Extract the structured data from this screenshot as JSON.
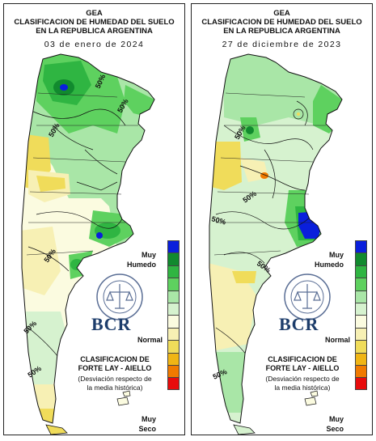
{
  "colors": {
    "scale": [
      "#0a1fdc",
      "#118a2e",
      "#2fb542",
      "#5ed15f",
      "#a9e6a7",
      "#d6f2cf",
      "#fbfbe0",
      "#f7f0b4",
      "#f0dc5a",
      "#f0b515",
      "#f07a00",
      "#e80c0c"
    ],
    "background": "#ffffff",
    "outline": "#111111"
  },
  "left_map": {
    "title_line1": "GEA",
    "title_line2": "CLASIFICACION DE HUMEDAD DEL SUELO",
    "title_line3": "EN LA REPUBLICA ARGENTINA",
    "date": "03 de enero de 2024",
    "isolines": [
      "50%",
      "50%",
      "50%",
      "50%",
      "50%",
      "50%"
    ]
  },
  "right_map": {
    "title_line1": "GEA",
    "title_line2": "CLASIFICACION DE HUMEDAD DEL SUELO",
    "title_line3": "EN LA REPUBLICA ARGENTINA",
    "date": "27 de diciembre de 2023",
    "isolines": [
      "50%",
      "50%",
      "50%",
      "50%",
      "50%"
    ]
  },
  "legend": {
    "top_label_1": "Muy",
    "top_label_2": "Humedo",
    "middle_label": "Normal",
    "bottom_label_1": "Muy",
    "bottom_label_2": "Seco",
    "class_title_1": "CLASIFICACION DE",
    "class_title_2": "FORTE LAY - AIELLO",
    "class_note_1": "(Desviación respecto de",
    "class_note_2": "la media histórica)",
    "logo_text": "BCR",
    "seal_icon": "bolsa-de-comercio-seal-icon"
  }
}
